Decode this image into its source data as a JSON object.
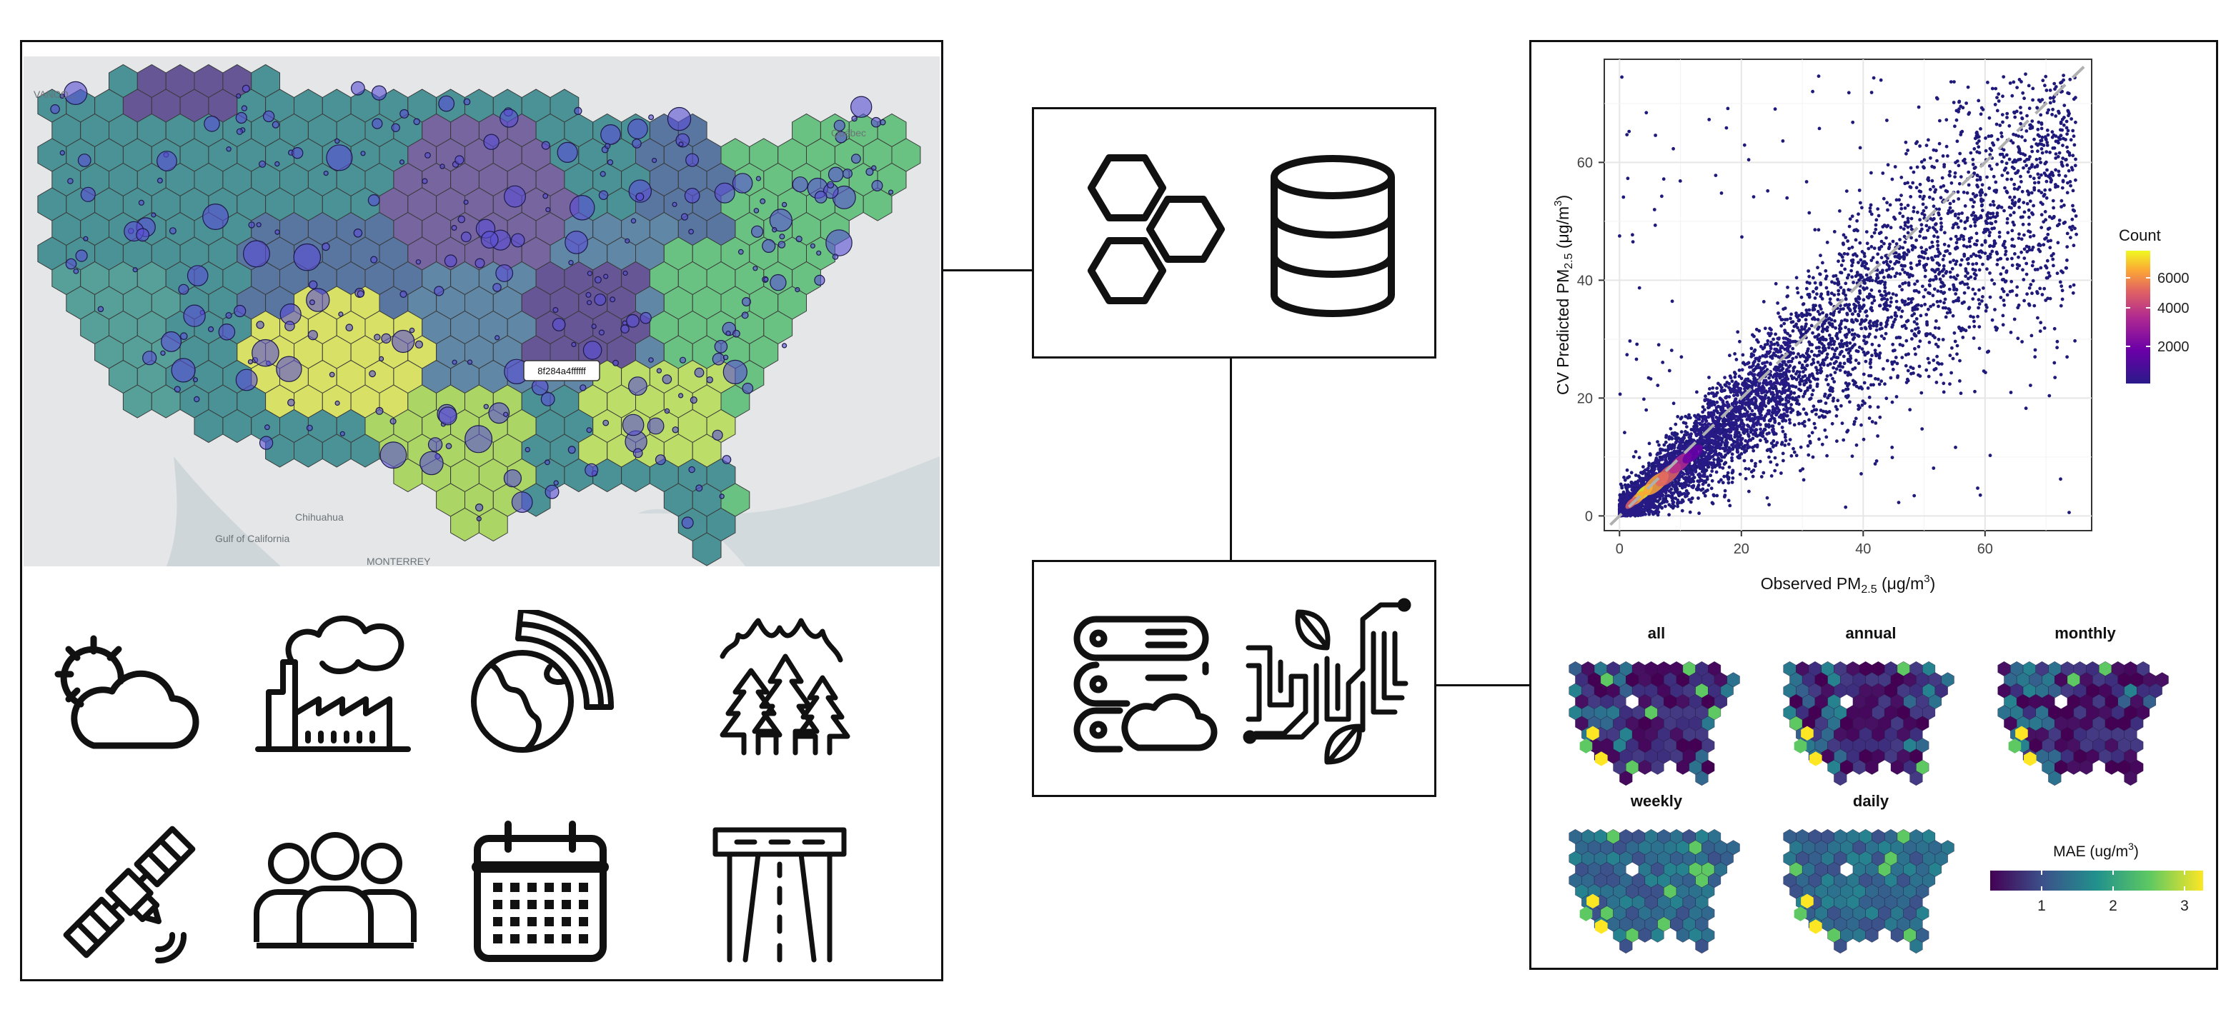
{
  "map": {
    "hex_label": "8f284a4ffffff",
    "place_labels": {
      "top_left": "VANCO...",
      "quebec": "Québec",
      "chihuahua": "Chihuahua",
      "gulf": "Gulf of California",
      "monterrey": "MONTERREY"
    }
  },
  "icons": {
    "row1": [
      "weather-icon",
      "factory-icon",
      "earth-broadcast-icon",
      "wildfire-icon"
    ],
    "row2": [
      "satellite-icon",
      "population-icon",
      "calendar-icon",
      "road-icon"
    ]
  },
  "scatter": {
    "xlabel_main": "Observed PM",
    "xlabel_sub": "2.5",
    "xlabel_unit_open": " (μg/m",
    "xlabel_unit_sup": "3",
    "xlabel_unit_close": ")",
    "ylabel_main": "CV Predicted PM",
    "ylabel_sub": "2.5",
    "ylabel_unit_open": " (μg/m",
    "ylabel_unit_sup": "3",
    "ylabel_unit_close": ")",
    "legend_title": "Count",
    "legend_ticks": [
      "6000",
      "4000",
      "2000"
    ]
  },
  "chart_data": {
    "type": "scatter",
    "x_ticks": [
      "0",
      "20",
      "40",
      "60"
    ],
    "y_ticks": [
      "0",
      "20",
      "40",
      "60"
    ],
    "xlim": [
      0,
      75
    ],
    "ylim": [
      0,
      75
    ],
    "identity_line": true,
    "grid": true,
    "color_scale": "plasma",
    "count_range": [
      0,
      7000
    ]
  },
  "mini_maps": {
    "titles": [
      "all",
      "annual",
      "monthly",
      "weekly",
      "daily"
    ],
    "legend_title_main": "MAE (ug/m",
    "legend_title_sup": "3",
    "legend_title_close": ")",
    "legend_ticks": [
      "1",
      "2",
      "3"
    ]
  },
  "colors": {
    "frame": "#111111",
    "viridis_dark": "#440154",
    "viridis_mid": "#21918c",
    "viridis_light": "#fde725",
    "point": "#1f1a7a"
  }
}
